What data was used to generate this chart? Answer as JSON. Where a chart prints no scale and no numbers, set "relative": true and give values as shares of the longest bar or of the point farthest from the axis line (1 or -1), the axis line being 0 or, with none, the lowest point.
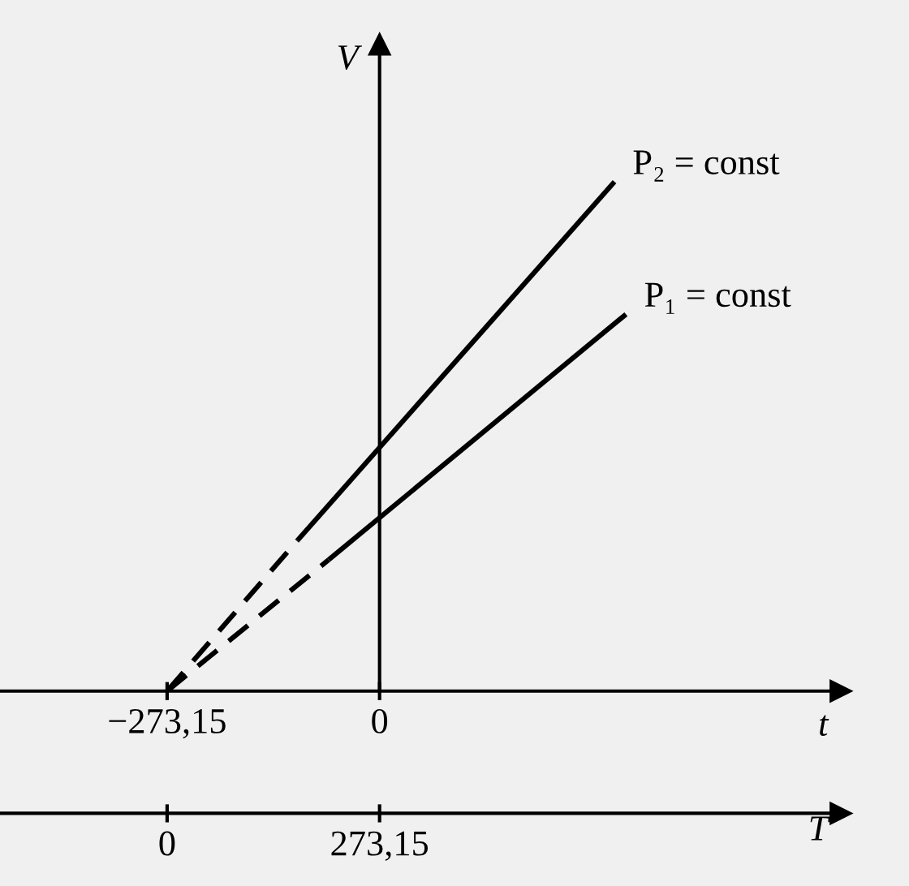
{
  "chart_data": {
    "type": "line",
    "relative": true,
    "xlabel": "t",
    "x2label": "T",
    "ylabel": "V",
    "xlim": [
      -488,
      593
    ],
    "xticks": [
      {
        "value": -273.15,
        "label": "−273,15"
      },
      0
    ],
    "x2lim": [
      -214.85,
      866.15
    ],
    "x2ticks": [
      0,
      {
        "value": 273.15,
        "label": "273,15"
      }
    ],
    "series": [
      {
        "name": "P₂ = const",
        "color": "#000000",
        "line_style": "solid",
        "x": [
          -105.5,
          302
        ],
        "values": [
          0.296,
          1
        ]
      },
      {
        "color": "#000000",
        "line_style": "dashed",
        "x": [
          -273.15,
          -105.5
        ],
        "values": [
          0,
          0.296
        ]
      },
      {
        "name": "P₁ = const",
        "color": "#000000",
        "line_style": "solid",
        "x": [
          -65.4,
          316.8
        ],
        "values": [
          0.258,
          0.74
        ]
      },
      {
        "color": "#000000",
        "line_style": "dashed",
        "x": [
          -273.15,
          -65.4
        ],
        "values": [
          0,
          0.258
        ]
      }
    ]
  }
}
